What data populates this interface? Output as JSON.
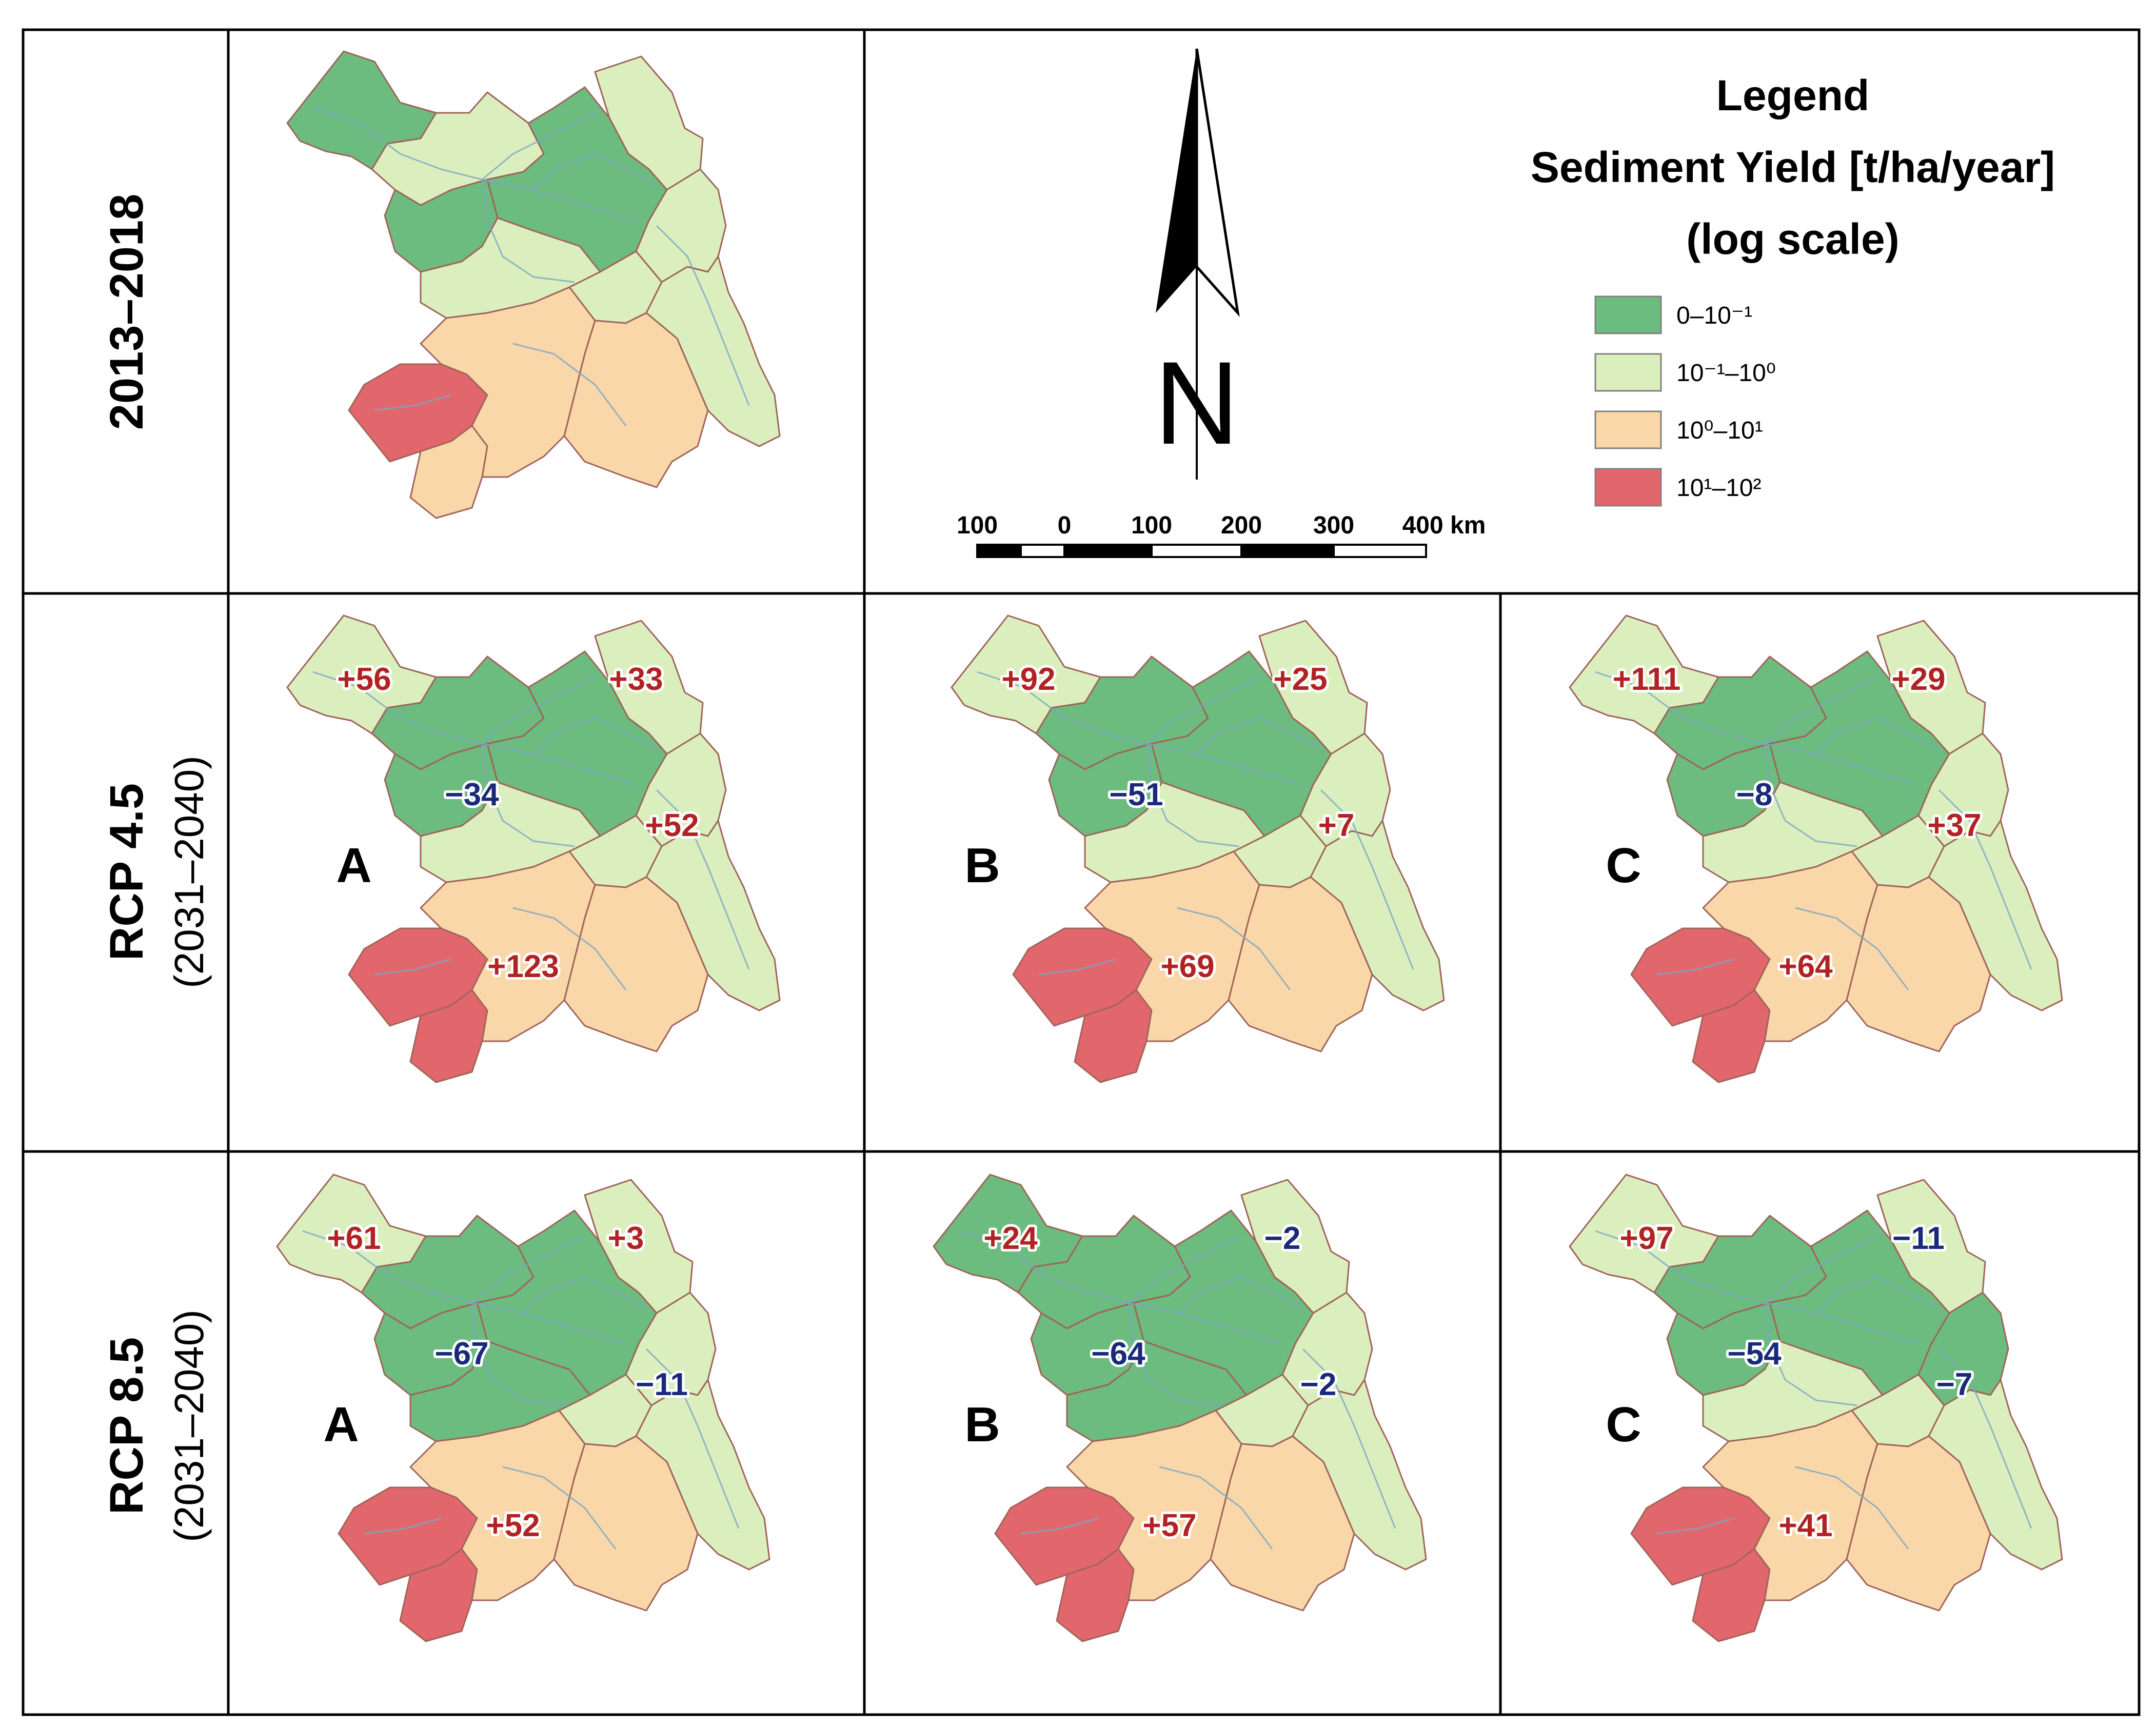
{
  "rows": [
    {
      "label": "2013–2018"
    },
    {
      "label": "RCP 4.5",
      "sublabel": "(2031–2040)"
    },
    {
      "label": "RCP 8.5",
      "sublabel": "(2031–2040)"
    }
  ],
  "legend": {
    "title": "Legend",
    "subtitle": "Sediment Yield [t/ha/year]",
    "scale_note": "(log scale)",
    "classes": [
      {
        "label": "0–10⁻¹",
        "color": "#6cbb7f"
      },
      {
        "label": "10⁻¹–10⁰",
        "color": "#dbefbe"
      },
      {
        "label": "10⁰–10¹",
        "color": "#f9d7a9"
      },
      {
        "label": "10¹–10²",
        "color": "#e2676c"
      }
    ]
  },
  "north_arrow": {
    "letter": "N"
  },
  "scale_bar": {
    "ticks": [
      "100",
      "0",
      "100",
      "200",
      "300",
      "400 km"
    ]
  },
  "colors": {
    "positive_change": "#b22222",
    "negative_change": "#1a2a7a"
  },
  "maps": [
    {
      "id": "baseline",
      "classes": {
        "nw": 0,
        "ne": 1,
        "c1": 1,
        "c2": 0,
        "cw": 0,
        "e": 1,
        "s1": 1,
        "s2": 1,
        "se": 1,
        "sw": 3,
        "ss": 2,
        "sc": 2,
        "sse": 2
      },
      "changes": []
    },
    {
      "id": "rcp45-a",
      "letter": "A",
      "classes": {
        "nw": 1,
        "ne": 1,
        "c1": 0,
        "c2": 0,
        "cw": 0,
        "e": 1,
        "s1": 1,
        "s2": 1,
        "se": 1,
        "sw": 3,
        "ss": 3,
        "sc": 2,
        "sse": 2
      },
      "changes": [
        {
          "text": "+56",
          "sign": "pos",
          "anchor": "nw"
        },
        {
          "text": "+33",
          "sign": "pos",
          "anchor": "ne"
        },
        {
          "text": "−34",
          "sign": "neg",
          "anchor": "c"
        },
        {
          "text": "+52",
          "sign": "pos",
          "anchor": "e"
        },
        {
          "text": "+123",
          "sign": "pos",
          "anchor": "s"
        }
      ]
    },
    {
      "id": "rcp45-b",
      "letter": "B",
      "classes": {
        "nw": 1,
        "ne": 1,
        "c1": 0,
        "c2": 0,
        "cw": 0,
        "e": 1,
        "s1": 1,
        "s2": 1,
        "se": 1,
        "sw": 3,
        "ss": 3,
        "sc": 2,
        "sse": 2
      },
      "changes": [
        {
          "text": "+92",
          "sign": "pos",
          "anchor": "nw"
        },
        {
          "text": "+25",
          "sign": "pos",
          "anchor": "ne"
        },
        {
          "text": "−51",
          "sign": "neg",
          "anchor": "c"
        },
        {
          "text": "+7",
          "sign": "pos",
          "anchor": "e"
        },
        {
          "text": "+69",
          "sign": "pos",
          "anchor": "s"
        }
      ]
    },
    {
      "id": "rcp45-c",
      "letter": "C",
      "classes": {
        "nw": 1,
        "ne": 1,
        "c1": 0,
        "c2": 0,
        "cw": 0,
        "e": 1,
        "s1": 1,
        "s2": 1,
        "se": 1,
        "sw": 3,
        "ss": 3,
        "sc": 2,
        "sse": 2
      },
      "changes": [
        {
          "text": "+111",
          "sign": "pos",
          "anchor": "nw"
        },
        {
          "text": "+29",
          "sign": "pos",
          "anchor": "ne"
        },
        {
          "text": "−8",
          "sign": "neg",
          "anchor": "c"
        },
        {
          "text": "+37",
          "sign": "pos",
          "anchor": "e"
        },
        {
          "text": "+64",
          "sign": "pos",
          "anchor": "s"
        }
      ]
    },
    {
      "id": "rcp85-a",
      "letter": "A",
      "classes": {
        "nw": 1,
        "ne": 1,
        "c1": 0,
        "c2": 0,
        "cw": 0,
        "e": 1,
        "s1": 0,
        "s2": 1,
        "se": 1,
        "sw": 3,
        "ss": 3,
        "sc": 2,
        "sse": 2
      },
      "changes": [
        {
          "text": "+61",
          "sign": "pos",
          "anchor": "nw"
        },
        {
          "text": "+3",
          "sign": "pos",
          "anchor": "ne"
        },
        {
          "text": "−67",
          "sign": "neg",
          "anchor": "c"
        },
        {
          "text": "−11",
          "sign": "neg",
          "anchor": "e"
        },
        {
          "text": "+52",
          "sign": "pos",
          "anchor": "s"
        }
      ]
    },
    {
      "id": "rcp85-b",
      "letter": "B",
      "classes": {
        "nw": 0,
        "ne": 1,
        "c1": 0,
        "c2": 0,
        "cw": 0,
        "e": 1,
        "s1": 0,
        "s2": 1,
        "se": 1,
        "sw": 3,
        "ss": 3,
        "sc": 2,
        "sse": 2
      },
      "changes": [
        {
          "text": "+24",
          "sign": "pos",
          "anchor": "nw"
        },
        {
          "text": "−2",
          "sign": "neg",
          "anchor": "ne"
        },
        {
          "text": "−64",
          "sign": "neg",
          "anchor": "c"
        },
        {
          "text": "−2",
          "sign": "neg",
          "anchor": "e"
        },
        {
          "text": "+57",
          "sign": "pos",
          "anchor": "s"
        }
      ]
    },
    {
      "id": "rcp85-c",
      "letter": "C",
      "classes": {
        "nw": 1,
        "ne": 1,
        "c1": 0,
        "c2": 0,
        "cw": 0,
        "e": 0,
        "s1": 1,
        "s2": 1,
        "se": 1,
        "sw": 3,
        "ss": 3,
        "sc": 2,
        "sse": 2
      },
      "changes": [
        {
          "text": "+97",
          "sign": "pos",
          "anchor": "nw"
        },
        {
          "text": "−11",
          "sign": "neg",
          "anchor": "ne"
        },
        {
          "text": "−54",
          "sign": "neg",
          "anchor": "c"
        },
        {
          "text": "−7",
          "sign": "neg",
          "anchor": "e"
        },
        {
          "text": "+41",
          "sign": "pos",
          "anchor": "s"
        }
      ]
    }
  ]
}
